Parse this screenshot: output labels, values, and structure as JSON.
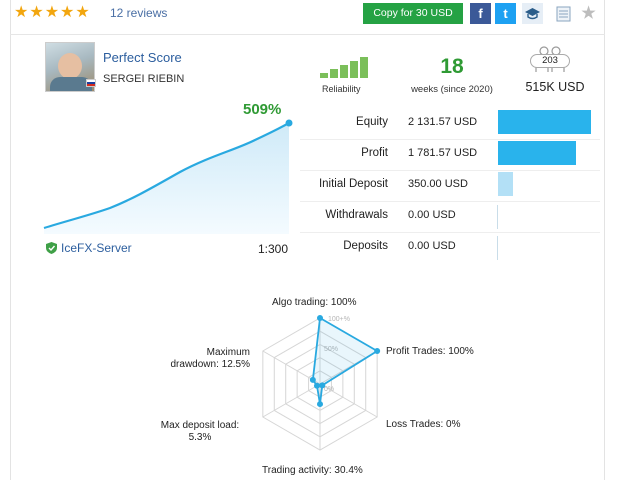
{
  "rating": {
    "stars": 5,
    "reviews_label": "12 reviews"
  },
  "actions": {
    "copy_label": "Copy for 30 USD",
    "facebook_glyph": "f",
    "twitter_glyph": "t",
    "favorite_glyph": "★"
  },
  "signal": {
    "name": "Perfect Score",
    "author": "SERGEI RIEBIN",
    "reliability_label": "Reliability",
    "weeks_value": "18",
    "weeks_label": "weeks (since 2020)",
    "subscribers": "203",
    "price": "515K USD"
  },
  "growth": {
    "percent_label": "509%",
    "server": "IceFX-Server",
    "leverage": "1:300",
    "line_color": "#29a9e0"
  },
  "stats": [
    {
      "label": "Equity",
      "value": "2 131.57 USD",
      "bar_ratio": 1.0,
      "bar_color": "#29b3ec"
    },
    {
      "label": "Profit",
      "value": "1 781.57 USD",
      "bar_ratio": 0.836,
      "bar_color": "#29b3ec"
    },
    {
      "label": "Initial Deposit",
      "value": "350.00 USD",
      "bar_ratio": 0.164,
      "bar_color": "#b3e0f6"
    },
    {
      "label": "Withdrawals",
      "value": "0.00 USD",
      "bar_ratio": 0.0,
      "bar_color": "#b3e0f6"
    },
    {
      "label": "Deposits",
      "value": "0.00 USD",
      "bar_ratio": 0.0,
      "bar_color": "#b3e0f6"
    }
  ],
  "chart_data": {
    "type": "radar",
    "ring_labels": [
      "100+%",
      "50%",
      "0%"
    ],
    "axes": [
      {
        "label": "Algo trading: 100%",
        "value": 100
      },
      {
        "label": "Profit Trades: 100%",
        "value": 100
      },
      {
        "label": "Loss Trades: 0%",
        "value": 0
      },
      {
        "label": "Trading activity: 30.4%",
        "value": 30.4
      },
      {
        "label": "Max deposit load:\n5.3%",
        "value": 5.3
      },
      {
        "label": "Maximum\ndrawdown: 12.5%",
        "value": 12.5
      }
    ],
    "series_color": "#29a9e0"
  }
}
